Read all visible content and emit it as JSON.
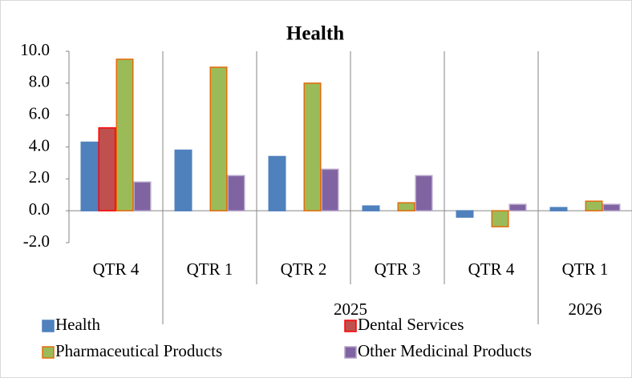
{
  "chart_data": {
    "type": "bar",
    "title": "Health",
    "categories": [
      "QTR 4",
      "QTR 1",
      "QTR 2",
      "QTR 3",
      "QTR 4",
      "QTR 1"
    ],
    "groups": [
      {
        "label": "2025",
        "first": 1,
        "count": 4
      },
      {
        "label": "2026",
        "first": 5,
        "count": 1
      }
    ],
    "series": [
      {
        "name": "Health",
        "color": "#4f81bd",
        "edge": "#4f81bd",
        "values": [
          4.3,
          3.8,
          3.4,
          0.3,
          -0.4,
          0.2
        ]
      },
      {
        "name": "Dental Services",
        "color": "#c0504d",
        "edge": "#ff0000",
        "values": [
          5.2,
          0,
          0,
          0,
          0,
          0
        ]
      },
      {
        "name": "Pharmaceutical Products",
        "color": "#9bbb59",
        "edge": "#e46c0a",
        "values": [
          9.5,
          9.0,
          8.0,
          0.5,
          -1.0,
          0.6
        ]
      },
      {
        "name": "Other Medicinal Products",
        "color": "#8064a2",
        "edge": "#b3a2c7",
        "values": [
          1.8,
          2.2,
          2.6,
          2.2,
          0.4,
          0.4
        ]
      }
    ],
    "ylim": [
      -2,
      10
    ],
    "yticks": [
      {
        "value": -2,
        "label": "-2.0"
      },
      {
        "value": 0,
        "label": "0.0"
      },
      {
        "value": 2,
        "label": "2.0"
      },
      {
        "value": 4,
        "label": "4.0"
      },
      {
        "value": 6,
        "label": "6.0"
      },
      {
        "value": 8,
        "label": "8.0"
      },
      {
        "value": 10,
        "label": "10.0"
      }
    ],
    "grid": false
  }
}
